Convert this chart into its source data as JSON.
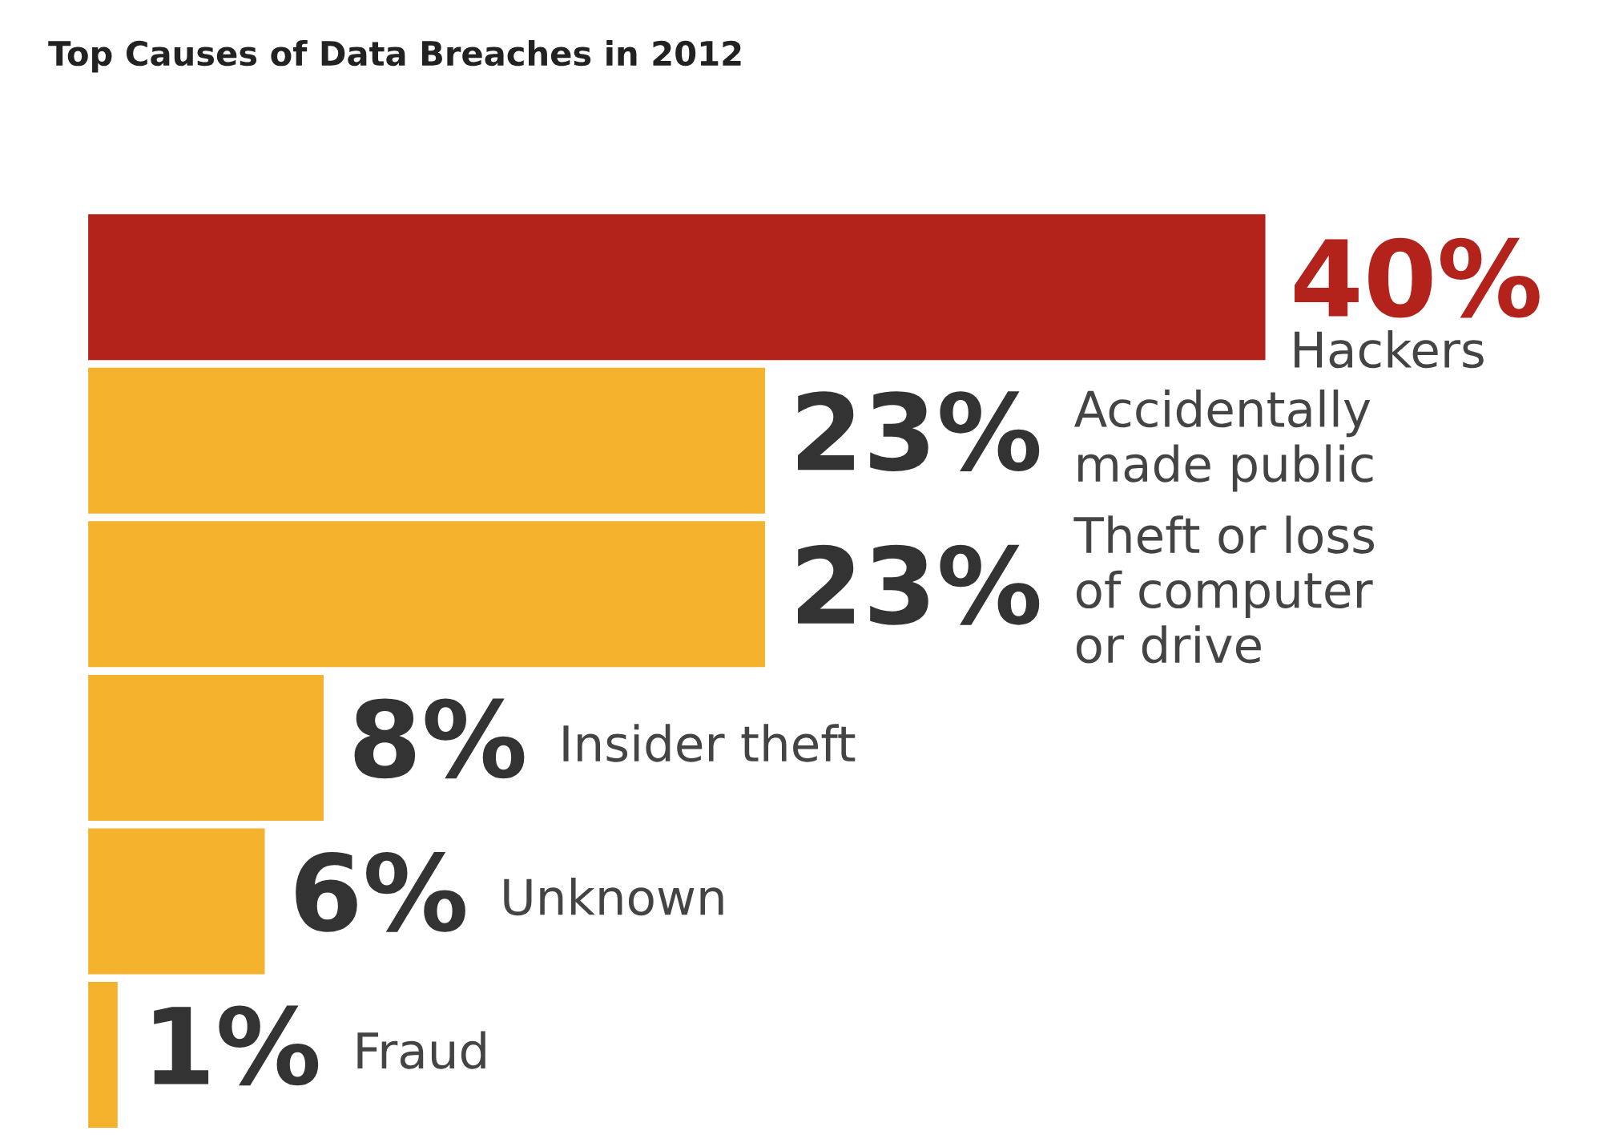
{
  "chart_data": {
    "type": "bar",
    "orientation": "horizontal",
    "title": "Top Causes of Data Breaches in 2012",
    "categories": [
      "Hackers",
      "Accidentally\nmade public",
      "Theft or loss\nof computer\nor drive",
      "Insider theft",
      "Unknown",
      "Fraud"
    ],
    "values": [
      40,
      23,
      23,
      8,
      6,
      1
    ],
    "colors": [
      "#b3231b",
      "#f5b22c",
      "#f5b22c",
      "#f5b22c",
      "#f5b22c",
      "#f5b22c"
    ],
    "value_labels": [
      "40%",
      "23%",
      "23%",
      "8%",
      "6%",
      "1%"
    ]
  }
}
